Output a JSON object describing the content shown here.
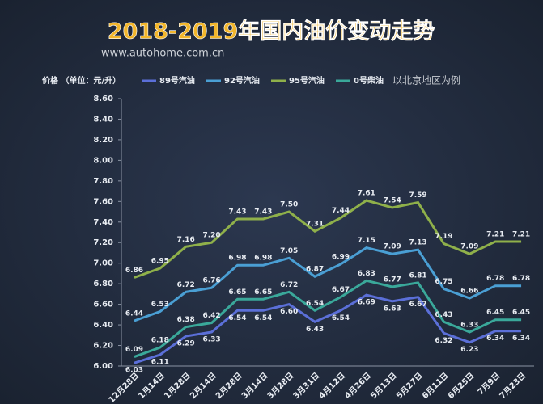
{
  "chart_data": {
    "type": "line",
    "title": "2018-2019年国内油价变动走势",
    "subtitle": "www.autohome.com.cn",
    "y_label": "价格 （单位：元/升）",
    "note": "以北京地区为例",
    "categories": [
      "12月28日",
      "1月14日",
      "1月28日",
      "2月14日",
      "2月28日",
      "3月14日",
      "3月28日",
      "3月31日",
      "4月12日",
      "4月26日",
      "5月13日",
      "5月27日",
      "6月11日",
      "6月25日",
      "7月9日",
      "7月23日"
    ],
    "series": [
      {
        "name": "89号汽油",
        "color": "#5b6fd8",
        "values": [
          6.03,
          6.11,
          6.29,
          6.33,
          6.54,
          6.54,
          6.6,
          6.43,
          6.54,
          6.69,
          6.63,
          6.67,
          6.32,
          6.23,
          6.34,
          6.34
        ],
        "value_labels": [
          "6.03",
          "6.11",
          "6.29",
          "6.33",
          "6.54",
          "6.54",
          "6.60",
          "6.43",
          "6.54",
          "6.69",
          "6.63",
          "6.67",
          "6.32",
          "6.23",
          "6.34",
          "6.34"
        ]
      },
      {
        "name": "92号汽油",
        "color": "#4a9fd4",
        "values": [
          6.44,
          6.53,
          6.72,
          6.76,
          6.98,
          6.98,
          7.05,
          6.87,
          6.99,
          7.15,
          7.09,
          7.13,
          6.75,
          6.66,
          6.78,
          6.78
        ],
        "value_labels": [
          "6.44",
          "6.53",
          "6.72",
          "6.76",
          "6.98",
          "6.98",
          "7.05",
          "6.87",
          "6.99",
          "7.15",
          "7.09",
          "7.13",
          "6.75",
          "6.66",
          "6.78",
          "6.78"
        ]
      },
      {
        "name": "95号汽油",
        "color": "#8fb04a",
        "values": [
          6.86,
          6.95,
          7.16,
          7.2,
          7.43,
          7.43,
          7.5,
          7.31,
          7.44,
          7.61,
          7.54,
          7.59,
          7.19,
          7.09,
          7.21,
          7.21
        ],
        "value_labels": [
          "6.86",
          "6.95",
          "7.16",
          "7.20",
          "7.43",
          "7.43",
          "7.50",
          "7.31",
          "7.44",
          "7.61",
          "7.54",
          "7.59",
          "7.19",
          "7.09",
          "7.21",
          "7.21"
        ]
      },
      {
        "name": "0号柴油",
        "color": "#3aa89a",
        "values": [
          6.09,
          6.18,
          6.38,
          6.42,
          6.65,
          6.65,
          6.72,
          6.54,
          6.67,
          6.83,
          6.77,
          6.81,
          6.43,
          6.33,
          6.45,
          6.45
        ],
        "value_labels": [
          "6.09",
          "6.18",
          "6.38",
          "6.42",
          "6.65",
          "6.65",
          "6.72",
          "6.54",
          "6.67",
          "6.83",
          "6.77",
          "6.81",
          "6.43",
          "6.33",
          "6.45",
          "6.45"
        ]
      }
    ],
    "ylim": [
      6.0,
      8.6
    ],
    "yticks": [
      {
        "value": 6.0,
        "label": "6.00"
      },
      {
        "value": 6.2,
        "label": "6.20"
      },
      {
        "value": 6.4,
        "label": "6.40"
      },
      {
        "value": 6.6,
        "label": "6.60"
      },
      {
        "value": 6.8,
        "label": "6.80"
      },
      {
        "value": 7.0,
        "label": "7.00"
      },
      {
        "value": 7.2,
        "label": "7.20"
      },
      {
        "value": 7.4,
        "label": "7.40"
      },
      {
        "value": 7.6,
        "label": "7.60"
      },
      {
        "value": 7.8,
        "label": "7.80"
      },
      {
        "value": 8.0,
        "label": "8.00"
      },
      {
        "value": 8.2,
        "label": "8.20"
      },
      {
        "value": 8.4,
        "label": "8.40"
      },
      {
        "value": 8.6,
        "label": "8.60"
      }
    ],
    "grid": false
  }
}
